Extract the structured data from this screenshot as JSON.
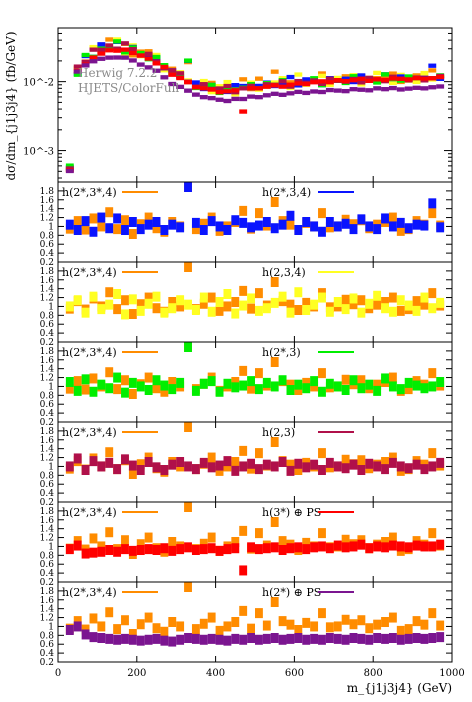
{
  "chart_data": {
    "type": "multi-panel histogram with ratio panels",
    "title": "",
    "xlabel": "m_{j1j3j4} (GeV)",
    "xlim": [
      0,
      1000
    ],
    "x_ticks": [
      "0",
      "200",
      "400",
      "600",
      "800",
      "1000"
    ],
    "x_tick_values": [
      0,
      200,
      400,
      600,
      800,
      1000
    ],
    "main": {
      "ylabel": "dσ/dm_{j1j3j4} (fb/GeV)",
      "ylim": [
        0.00035,
        0.06
      ],
      "yscale": "log",
      "y_ticks": [
        "10^-3",
        "10^-2"
      ],
      "y_tick_values": [
        0.001,
        0.01
      ],
      "annotation_lines": [
        "Herwig 7.2.2",
        "HJETS/ColorFull"
      ]
    },
    "ratio_y_ticks": [
      "0.2",
      "0.4",
      "0.6",
      "0.8",
      "1",
      "1.2",
      "1.4",
      "1.6",
      "1.8"
    ],
    "ratio_y_tick_values": [
      0.2,
      0.4,
      0.6,
      0.8,
      1.0,
      1.2,
      1.4,
      1.6,
      1.8
    ],
    "ratio_ylim": [
      0.2,
      2.0
    ],
    "bins": {
      "count": 48,
      "edges_start": 20,
      "width": 20,
      "reference_values": [
        0.00055,
        0.014,
        0.021,
        0.026,
        0.029,
        0.031,
        0.032,
        0.031,
        0.029,
        0.026,
        0.023,
        0.02,
        0.017,
        0.014,
        0.012,
        0.01,
        0.009,
        0.0085,
        0.008,
        0.0078,
        0.0077,
        0.0078,
        0.008,
        0.0082,
        0.0085,
        0.0088,
        0.009,
        0.0092,
        0.0094,
        0.0096,
        0.0098,
        0.01,
        0.0101,
        0.0102,
        0.0103,
        0.0104,
        0.0105,
        0.0106,
        0.0107,
        0.0108,
        0.0108,
        0.0109,
        0.011,
        0.011,
        0.011,
        0.0111,
        0.0112,
        0.0112
      ]
    },
    "series": [
      {
        "name": "h(2*,3*,4)",
        "color": "#ff8c00",
        "ratio": [
          0.95,
          1.12,
          0.93,
          1.18,
          1.0,
          1.32,
          0.94,
          1.14,
          0.83,
          1.05,
          1.2,
          0.96,
          0.88,
          1.1,
          1.0,
          1.92,
          0.94,
          1.06,
          1.2,
          0.9,
          1.0,
          1.1,
          1.35,
          0.95,
          1.3,
          1.02,
          1.55,
          1.12,
          1.04,
          0.92,
          1.08,
          1.0,
          1.3,
          0.98,
          1.0,
          1.15,
          1.05,
          1.14,
          0.96,
          1.04,
          1.1,
          1.2,
          0.9,
          0.94,
          1.12,
          1.04,
          1.3,
          1.02
        ]
      },
      {
        "name": "h(2*,3,4)",
        "color": "#0a14ff",
        "ratio": [
          1.04,
          0.92,
          1.12,
          0.88,
          1.2,
          0.96,
          1.18,
          0.92,
          1.1,
          0.94,
          1.04,
          1.1,
          0.92,
          1.04,
          0.98,
          2.0,
          1.08,
          0.92,
          1.12,
          1.0,
          0.92,
          1.14,
          1.08,
          0.98,
          1.02,
          1.1,
          0.96,
          1.04,
          1.24,
          0.92,
          1.1,
          1.0,
          0.88,
          1.1,
          1.0,
          1.06,
          0.94,
          1.16,
          1.0,
          0.94,
          1.18,
          1.0,
          1.08,
          0.96,
          1.04,
          1.02,
          1.52,
          0.98
        ]
      },
      {
        "name": "h(2,3,4)",
        "color": "#ffff22",
        "ratio": [
          1.0,
          1.14,
          0.86,
          1.22,
          0.94,
          1.04,
          1.28,
          0.82,
          1.16,
          0.9,
          1.06,
          1.22,
          0.86,
          0.96,
          1.14,
          1.04,
          0.92,
          1.2,
          0.88,
          1.1,
          1.28,
          0.84,
          1.02,
          1.18,
          0.9,
          0.96,
          1.08,
          1.22,
          0.86,
          1.32,
          0.92,
          1.04,
          1.2,
          0.88,
          1.1,
          0.94,
          1.18,
          0.86,
          1.06,
          1.24,
          0.96,
          0.88,
          1.14,
          1.02,
          0.9,
          1.2,
          0.96,
          1.08
        ]
      },
      {
        "name": "h(2*,3)",
        "color": "#00ee00",
        "ratio": [
          1.1,
          0.9,
          1.16,
          0.88,
          1.04,
          0.96,
          1.2,
          0.86,
          1.08,
          1.0,
          0.92,
          1.14,
          1.02,
          0.94,
          1.08,
          2.02,
          0.9,
          1.06,
          1.12,
          0.88,
          1.06,
          0.98,
          1.02,
          1.12,
          0.94,
          1.08,
          1.0,
          1.14,
          0.92,
          1.04,
          0.96,
          1.12,
          0.88,
          1.06,
          1.0,
          0.92,
          1.14,
          0.96,
          1.04,
          0.9,
          1.18,
          1.0,
          0.94,
          1.08,
          1.02,
          0.96,
          1.0,
          1.1
        ]
      },
      {
        "name": "h(2,3)",
        "color": "#b0104a",
        "ratio": [
          1.0,
          1.18,
          0.92,
          1.12,
          1.0,
          1.08,
          0.94,
          1.16,
          1.02,
          0.92,
          1.1,
          0.98,
          0.92,
          1.04,
          1.1,
          1.0,
          0.94,
          1.08,
          0.98,
          1.02,
          1.12,
          0.9,
          1.0,
          1.06,
          0.94,
          1.04,
          1.0,
          1.1,
          0.9,
          1.06,
          0.98,
          1.04,
          0.92,
          1.08,
          1.0,
          0.96,
          1.04,
          0.92,
          1.06,
          1.0,
          0.94,
          1.08,
          1.0,
          0.96,
          1.04,
          0.94,
          1.0,
          1.08
        ]
      },
      {
        "name": "h(3*) ⊕ PS",
        "color": "#ff0000",
        "ratio": [
          0.94,
          1.02,
          0.84,
          0.86,
          0.88,
          0.92,
          0.88,
          0.94,
          0.9,
          0.92,
          0.94,
          0.92,
          0.96,
          0.9,
          0.94,
          0.98,
          0.92,
          0.94,
          0.96,
          0.9,
          0.94,
          0.96,
          0.46,
          0.98,
          0.94,
          0.96,
          0.98,
          0.92,
          0.96,
          0.98,
          0.94,
          0.98,
          1.0,
          0.96,
          1.02,
          0.98,
          1.0,
          1.04,
          0.96,
          1.0,
          0.98,
          1.02,
          1.0,
          0.98,
          1.02,
          1.0,
          1.0,
          1.04
        ]
      },
      {
        "name": "h(2*) ⊕ PS",
        "color": "#7b1590",
        "ratio": [
          0.92,
          1.0,
          0.82,
          0.76,
          0.74,
          0.72,
          0.7,
          0.72,
          0.7,
          0.68,
          0.7,
          0.72,
          0.68,
          0.66,
          0.7,
          0.74,
          0.72,
          0.7,
          0.72,
          0.7,
          0.68,
          0.72,
          0.7,
          0.74,
          0.7,
          0.72,
          0.74,
          0.7,
          0.72,
          0.74,
          0.7,
          0.72,
          0.7,
          0.74,
          0.72,
          0.7,
          0.74,
          0.72,
          0.7,
          0.74,
          0.72,
          0.74,
          0.7,
          0.72,
          0.74,
          0.72,
          0.74,
          0.76
        ]
      }
    ],
    "ratio_panels": [
      {
        "reference": "h(2*,3*,4)",
        "compared": "h(2*,3,4)"
      },
      {
        "reference": "h(2*,3*,4)",
        "compared": "h(2,3,4)"
      },
      {
        "reference": "h(2*,3*,4)",
        "compared": "h(2*,3)"
      },
      {
        "reference": "h(2*,3*,4)",
        "compared": "h(2,3)"
      },
      {
        "reference": "h(2*,3*,4)",
        "compared": "h(3*) ⊕ PS"
      },
      {
        "reference": "h(2*,3*,4)",
        "compared": "h(2*) ⊕ PS"
      }
    ]
  }
}
